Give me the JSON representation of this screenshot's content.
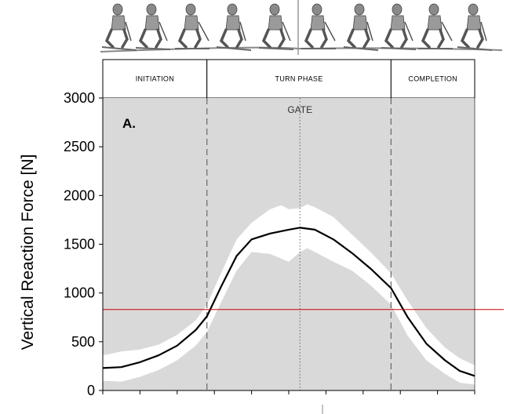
{
  "chart_data": {
    "type": "line",
    "panel_label": "A.",
    "ylabel": "Vertical Reaction Force  [N]",
    "xlabel": "",
    "ylim": [
      0,
      3000
    ],
    "yticks": [
      0,
      500,
      1000,
      1500,
      2000,
      2500,
      3000
    ],
    "xlim": [
      0,
      100
    ],
    "x_minor_ticks": [
      0,
      10,
      20,
      30,
      40,
      50,
      60,
      70,
      80,
      90,
      100
    ],
    "phases": [
      {
        "label": "INITIATION",
        "start": 0,
        "end": 28
      },
      {
        "label": "TURN PHASE",
        "start": 28,
        "end": 77.5
      },
      {
        "label": "COMPLETION",
        "start": 77.5,
        "end": 100
      }
    ],
    "gate": {
      "label": "GATE",
      "x": 53
    },
    "reference_line": {
      "y": 830,
      "color": "#cc0000"
    },
    "colors": {
      "background": "#d9d9d9",
      "band": "#ffffff",
      "mean": "#000000"
    },
    "series": [
      {
        "name": "mean",
        "x": [
          0,
          5,
          10,
          15,
          20,
          25,
          28,
          32,
          36,
          40,
          45,
          50,
          53,
          57,
          62,
          67,
          72,
          77.5,
          82,
          87,
          92,
          96,
          100
        ],
        "values": [
          230,
          240,
          290,
          360,
          460,
          620,
          760,
          1080,
          1380,
          1550,
          1610,
          1650,
          1670,
          1650,
          1550,
          1410,
          1250,
          1050,
          750,
          480,
          310,
          200,
          150
        ]
      },
      {
        "name": "upper",
        "x": [
          0,
          5,
          10,
          15,
          20,
          25,
          28,
          32,
          36,
          40,
          45,
          48,
          50,
          53,
          55,
          57,
          62,
          67,
          72,
          77.5,
          82,
          87,
          92,
          96,
          100
        ],
        "values": [
          360,
          400,
          420,
          470,
          570,
          720,
          880,
          1220,
          1550,
          1720,
          1860,
          1900,
          1860,
          1870,
          1910,
          1880,
          1780,
          1600,
          1420,
          1200,
          920,
          640,
          440,
          330,
          260
        ]
      },
      {
        "name": "lower",
        "x": [
          0,
          5,
          10,
          15,
          20,
          25,
          28,
          32,
          36,
          40,
          45,
          50,
          53,
          55,
          57,
          62,
          67,
          72,
          77.5,
          82,
          87,
          92,
          96,
          100
        ],
        "values": [
          100,
          90,
          140,
          210,
          310,
          460,
          600,
          920,
          1230,
          1420,
          1400,
          1320,
          1420,
          1460,
          1420,
          1320,
          1230,
          1080,
          880,
          560,
          310,
          170,
          80,
          60
        ]
      }
    ]
  }
}
